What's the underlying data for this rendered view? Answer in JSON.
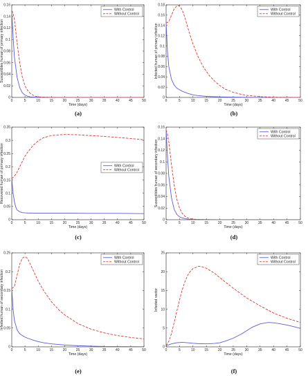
{
  "figure": {
    "panels": [
      "(a)",
      "(b)",
      "(c)",
      "(d)",
      "(e)",
      "(f)"
    ]
  },
  "colors": {
    "with_control": "#5b5bd6",
    "without_control": "#d8382f"
  },
  "chart_data": [
    {
      "type": "line",
      "panel": "(a)",
      "xlabel": "Time (days)",
      "ylabel": "Susceptibles human of primary infection",
      "xlim": [
        0,
        50
      ],
      "ylim": [
        0,
        0.16
      ],
      "xticks": [
        0,
        5,
        10,
        15,
        20,
        25,
        30,
        35,
        40,
        45,
        50
      ],
      "yticks": [
        0,
        0.02,
        0.04,
        0.06,
        0.08,
        0.1,
        0.12,
        0.14,
        0.16
      ],
      "grid": false,
      "legend": "top-right",
      "series": [
        {
          "name": "With Control",
          "style": "solid",
          "x": [
            0,
            0.5,
            1,
            2,
            3,
            4,
            5,
            6,
            7,
            8,
            10,
            15,
            20,
            30,
            40,
            50
          ],
          "y": [
            0.15,
            0.105,
            0.07,
            0.035,
            0.017,
            0.008,
            0.004,
            0.002,
            0.001,
            0.0006,
            0.0003,
            0.0001,
            0,
            0,
            0,
            0
          ]
        },
        {
          "name": "Without Control",
          "style": "dashed",
          "x": [
            0,
            0.5,
            1,
            1.5,
            2,
            3,
            4,
            5,
            6,
            7,
            8,
            9,
            10,
            12,
            15,
            20,
            30,
            40,
            50
          ],
          "y": [
            0.15,
            0.146,
            0.135,
            0.115,
            0.095,
            0.06,
            0.035,
            0.02,
            0.012,
            0.007,
            0.004,
            0.002,
            0.001,
            0.0005,
            0.0002,
            0,
            0,
            0,
            0
          ]
        }
      ]
    },
    {
      "type": "line",
      "panel": "(b)",
      "xlabel": "Time (days)",
      "ylabel": "Infected human of primary infection",
      "xlim": [
        0,
        50
      ],
      "ylim": [
        0,
        0.18
      ],
      "xticks": [
        0,
        5,
        10,
        15,
        20,
        25,
        30,
        35,
        40,
        45,
        50
      ],
      "yticks": [
        0,
        0.02,
        0.04,
        0.06,
        0.08,
        0.1,
        0.12,
        0.14,
        0.16,
        0.18
      ],
      "grid": false,
      "legend": "top-right",
      "series": [
        {
          "name": "With Control",
          "style": "solid",
          "x": [
            0,
            0.5,
            1,
            2,
            3,
            4,
            5,
            6,
            8,
            10,
            12,
            15,
            20,
            25,
            30,
            35,
            40,
            50
          ],
          "y": [
            0.145,
            0.09,
            0.06,
            0.035,
            0.024,
            0.018,
            0.015,
            0.012,
            0.008,
            0.005,
            0.0035,
            0.002,
            0.001,
            0.0005,
            0.0002,
            0.0001,
            0,
            0
          ]
        },
        {
          "name": "Without Control",
          "style": "dashed",
          "x": [
            0,
            1,
            2,
            3,
            4,
            5,
            6,
            7,
            8,
            9,
            10,
            12,
            14,
            16,
            18,
            20,
            22,
            25,
            28,
            30,
            35,
            40,
            45,
            50
          ],
          "y": [
            0.145,
            0.147,
            0.16,
            0.172,
            0.178,
            0.178,
            0.17,
            0.155,
            0.137,
            0.12,
            0.104,
            0.078,
            0.058,
            0.043,
            0.032,
            0.023,
            0.016,
            0.01,
            0.006,
            0.004,
            0.0015,
            0.0005,
            0.0002,
            0
          ]
        }
      ]
    },
    {
      "type": "line",
      "panel": "(c)",
      "xlabel": "Time (days)",
      "ylabel": "Recovered human of primary infection",
      "xlim": [
        0,
        50
      ],
      "ylim": [
        0,
        0.35
      ],
      "xticks": [
        0,
        5,
        10,
        15,
        20,
        25,
        30,
        35,
        40,
        45,
        50
      ],
      "yticks": [
        0,
        0.05,
        0.1,
        0.15,
        0.2,
        0.25,
        0.3,
        0.35
      ],
      "grid": false,
      "legend": "center-right",
      "series": [
        {
          "name": "With Control",
          "style": "solid",
          "x": [
            0,
            0.5,
            1,
            1.5,
            2,
            3,
            4,
            5,
            6,
            8,
            10,
            15,
            20,
            30,
            40,
            50
          ],
          "y": [
            0.155,
            0.1,
            0.068,
            0.048,
            0.037,
            0.03,
            0.027,
            0.026,
            0.0255,
            0.025,
            0.025,
            0.025,
            0.025,
            0.024,
            0.024,
            0.023
          ]
        },
        {
          "name": "Without Control",
          "style": "dashed",
          "x": [
            0,
            1,
            2,
            3,
            4,
            5,
            6,
            8,
            10,
            12,
            15,
            18,
            20,
            22,
            25,
            30,
            35,
            40,
            45,
            50
          ],
          "y": [
            0.155,
            0.165,
            0.18,
            0.2,
            0.22,
            0.24,
            0.255,
            0.28,
            0.298,
            0.31,
            0.318,
            0.321,
            0.322,
            0.322,
            0.321,
            0.318,
            0.315,
            0.311,
            0.307,
            0.302
          ]
        }
      ]
    },
    {
      "type": "line",
      "panel": "(d)",
      "xlabel": "Time (days)",
      "ylabel": "Susceptibles human of secondary infection",
      "xlim": [
        0,
        50
      ],
      "ylim": [
        0,
        0.16
      ],
      "xticks": [
        0,
        5,
        10,
        15,
        20,
        25,
        30,
        35,
        40,
        45,
        50
      ],
      "yticks": [
        0,
        0.02,
        0.04,
        0.06,
        0.08,
        0.1,
        0.12,
        0.14,
        0.16
      ],
      "grid": false,
      "legend": "top-right",
      "series": [
        {
          "name": "With Control",
          "style": "solid",
          "x": [
            0,
            0.5,
            1,
            2,
            3,
            4,
            5,
            6,
            7,
            8,
            10,
            15,
            20,
            30,
            40,
            50
          ],
          "y": [
            0.155,
            0.11,
            0.075,
            0.038,
            0.018,
            0.009,
            0.005,
            0.003,
            0.002,
            0.001,
            0.0005,
            0.0002,
            0.0001,
            0,
            0,
            0
          ]
        },
        {
          "name": "Without Control",
          "style": "dashed",
          "x": [
            0,
            0.5,
            1,
            1.5,
            2,
            3,
            4,
            5,
            6,
            7,
            8,
            10,
            12,
            15,
            20,
            30,
            40,
            50
          ],
          "y": [
            0.155,
            0.148,
            0.135,
            0.115,
            0.095,
            0.06,
            0.035,
            0.02,
            0.011,
            0.006,
            0.003,
            0.001,
            0.0005,
            0.0002,
            0,
            0,
            0,
            0
          ]
        }
      ]
    },
    {
      "type": "line",
      "panel": "(e)",
      "xlabel": "Time (days)",
      "ylabel": "Infected human of secondary infection",
      "xlim": [
        0,
        50
      ],
      "ylim": [
        0,
        0.25
      ],
      "xticks": [
        0,
        5,
        10,
        15,
        20,
        25,
        30,
        35,
        40,
        45,
        50
      ],
      "yticks": [
        0,
        0.05,
        0.1,
        0.15,
        0.2,
        0.25
      ],
      "grid": false,
      "legend": "top-right",
      "series": [
        {
          "name": "With Control",
          "style": "solid",
          "x": [
            0,
            0.5,
            1,
            2,
            3,
            4,
            5,
            6,
            8,
            10,
            12,
            15,
            20,
            25,
            30,
            35,
            40,
            45,
            50
          ],
          "y": [
            0.155,
            0.1,
            0.07,
            0.045,
            0.035,
            0.03,
            0.026,
            0.023,
            0.018,
            0.014,
            0.011,
            0.008,
            0.005,
            0.003,
            0.002,
            0.001,
            0.0008,
            0.0005,
            0.0003
          ]
        },
        {
          "name": "Without Control",
          "style": "dashed",
          "x": [
            0,
            1,
            2,
            3,
            4,
            5,
            6,
            7,
            8,
            10,
            12,
            15,
            18,
            20,
            25,
            30,
            35,
            40,
            45,
            50
          ],
          "y": [
            0.155,
            0.16,
            0.19,
            0.22,
            0.236,
            0.24,
            0.235,
            0.22,
            0.205,
            0.175,
            0.15,
            0.12,
            0.097,
            0.085,
            0.062,
            0.047,
            0.037,
            0.03,
            0.025,
            0.021
          ]
        }
      ]
    },
    {
      "type": "line",
      "panel": "(f)",
      "xlabel": "Time (days)",
      "ylabel": "Infected vector",
      "xlim": [
        0,
        50
      ],
      "ylim": [
        0,
        25
      ],
      "xticks": [
        0,
        5,
        10,
        15,
        20,
        25,
        30,
        35,
        40,
        45,
        50
      ],
      "yticks": [
        0,
        5,
        10,
        15,
        20,
        25
      ],
      "grid": false,
      "legend": "top-right",
      "series": [
        {
          "name": "With Control",
          "style": "solid",
          "x": [
            0,
            2,
            4,
            6,
            8,
            10,
            12,
            15,
            18,
            20,
            22,
            25,
            28,
            30,
            32,
            35,
            38,
            40,
            42,
            45,
            48,
            50
          ],
          "y": [
            0.3,
            0.8,
            1.1,
            1.2,
            1.1,
            0.95,
            0.85,
            0.8,
            0.9,
            1.1,
            1.5,
            2.3,
            3.4,
            4.3,
            5.2,
            6.1,
            6.5,
            6.4,
            6.2,
            5.8,
            5.3,
            4.9
          ]
        },
        {
          "name": "Without Control",
          "style": "dashed",
          "x": [
            0,
            1,
            2,
            3,
            4,
            5,
            6,
            7,
            8,
            9,
            10,
            12,
            13,
            15,
            18,
            20,
            25,
            30,
            35,
            40,
            45,
            50
          ],
          "y": [
            0.3,
            1.5,
            3.5,
            6.5,
            9.5,
            12.5,
            15.2,
            17.3,
            19,
            20.1,
            20.8,
            21.4,
            21.4,
            20.9,
            19.6,
            18.4,
            15.6,
            13,
            10.9,
            9,
            7.6,
            6.5
          ]
        }
      ]
    }
  ]
}
